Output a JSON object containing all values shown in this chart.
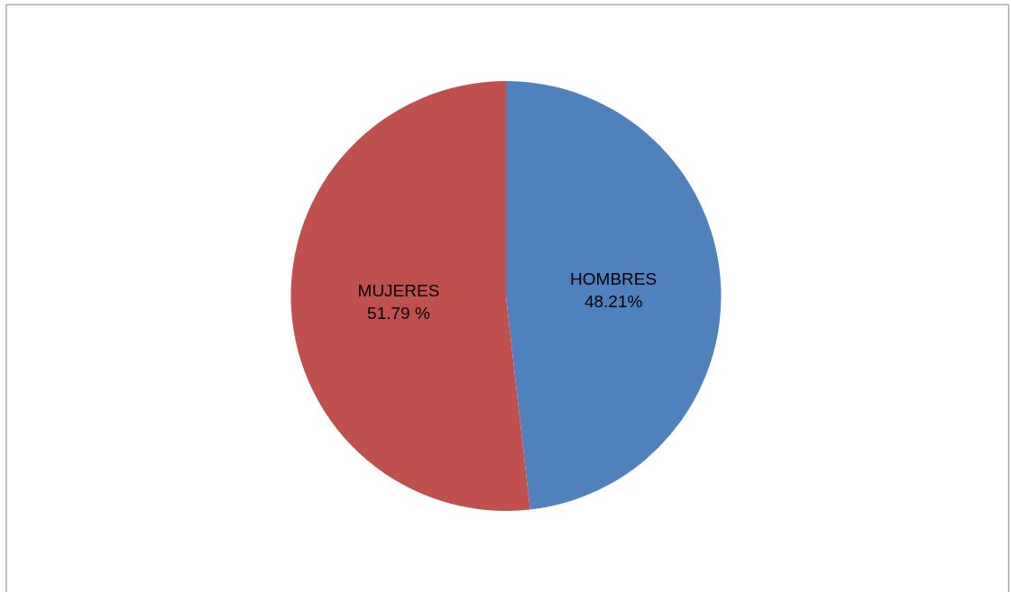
{
  "chart_data": {
    "type": "pie",
    "categories": [
      "HOMBRES",
      "MUJERES"
    ],
    "values": [
      48.21,
      51.79
    ],
    "value_labels": [
      "48.21%",
      "51.79 %"
    ],
    "colors": [
      "#4f81bd",
      "#c0504d"
    ],
    "legend": false
  }
}
